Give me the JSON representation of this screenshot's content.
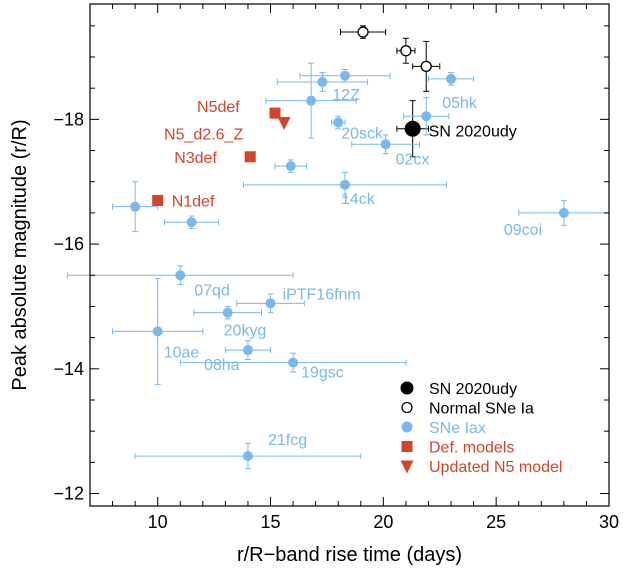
{
  "chart_data": {
    "type": "scatter",
    "xlabel": "r/R−band rise time (days)",
    "ylabel": "Peak absolute magnitude (r/R)",
    "xlim": [
      7,
      30
    ],
    "ylim": [
      -11.8,
      -19.85
    ],
    "y_inverted": true,
    "x_ticks": [
      10,
      15,
      20,
      25,
      30
    ],
    "y_ticks": [
      -12,
      -14,
      -16,
      -18
    ],
    "y_tick_labels": [
      "−12",
      "−14",
      "−16",
      "−18"
    ],
    "legend_position": "bottom-right",
    "colors": {
      "iax": "#79b8ec",
      "def": "#d6432a",
      "black": "#000000"
    },
    "series": [
      {
        "name": "SN 2020udy",
        "marker": "filled-circle",
        "color": "#000000",
        "points": [
          {
            "label": "SN 2020udy",
            "x": 21.3,
            "y": -17.85,
            "xerr": 0.7,
            "yerr": 0.45
          }
        ]
      },
      {
        "name": "Normal SNe Ia",
        "marker": "open-circle",
        "color": "#000000",
        "points": [
          {
            "label": "",
            "x": 19.1,
            "y": -19.4,
            "xerr": 1.0,
            "yerr": 0.1
          },
          {
            "label": "",
            "x": 21.0,
            "y": -19.1,
            "xerr": 0.4,
            "yerr": 0.2
          },
          {
            "label": "",
            "x": 21.9,
            "y": -18.85,
            "xerr": 0.6,
            "yerr": 0.4
          }
        ]
      },
      {
        "name": "SNe Iax",
        "marker": "filled-circle",
        "color": "#79b8ec",
        "points": [
          {
            "label": "12Z",
            "x": 17.3,
            "y": -18.6,
            "xerr": 2.0,
            "yerr": 0.15
          },
          {
            "label": "",
            "x": 18.3,
            "y": -18.7,
            "xerr": 2.0,
            "yerr": 0.1
          },
          {
            "label": "",
            "x": 16.8,
            "y": -18.3,
            "xerr": 2.0,
            "yerr": 0.6
          },
          {
            "label": "20sck",
            "x": 18.0,
            "y": -17.95,
            "xerr": 0.3,
            "yerr": 0.1
          },
          {
            "label": "05hk",
            "x": 21.9,
            "y": -18.05,
            "xerr": 1.0,
            "yerr": 0.3
          },
          {
            "label": "",
            "x": 23.0,
            "y": -18.65,
            "xerr": 1.0,
            "yerr": 0.1
          },
          {
            "label": "02cx",
            "x": 20.1,
            "y": -17.6,
            "xerr": 1.5,
            "yerr": 0.15
          },
          {
            "label": "",
            "x": 15.9,
            "y": -17.25,
            "xerr": 0.7,
            "yerr": 0.1
          },
          {
            "label": "14ck",
            "x": 18.3,
            "y": -16.95,
            "xerr": 4.5,
            "yerr": 0.2
          },
          {
            "label": "",
            "x": 9.0,
            "y": -16.6,
            "xerr": 1.0,
            "yerr": 0.4
          },
          {
            "label": "",
            "x": 11.5,
            "y": -16.35,
            "xerr": 1.2,
            "yerr": 0.1
          },
          {
            "label": "09coi",
            "x": 28.0,
            "y": -16.5,
            "xerr": 2.0,
            "yerr": 0.2
          },
          {
            "label": "07qd",
            "x": 11.0,
            "y": -15.5,
            "xerr": 5.0,
            "yerr": 0.15
          },
          {
            "label": "iPTF16fnm",
            "x": 15.0,
            "y": -15.05,
            "xerr": 1.5,
            "yerr": 0.15
          },
          {
            "label": "20kyg",
            "x": 13.1,
            "y": -14.9,
            "xerr": 1.5,
            "yerr": 0.1
          },
          {
            "label": "10ae",
            "x": 10.0,
            "y": -14.6,
            "xerr": 2.0,
            "yerr": 0.85
          },
          {
            "label": "08ha",
            "x": 14.0,
            "y": -14.3,
            "xerr": 1.0,
            "yerr": 0.15
          },
          {
            "label": "19gsc",
            "x": 16.0,
            "y": -14.1,
            "xerr": 5.0,
            "yerr": 0.15
          },
          {
            "label": "21fcg",
            "x": 14.0,
            "y": -12.6,
            "xerr": 5.0,
            "yerr": 0.2
          }
        ]
      },
      {
        "name": "Def. models",
        "marker": "filled-square",
        "color": "#d6432a",
        "points": [
          {
            "label": "N5def",
            "x": 15.2,
            "y": -18.1
          },
          {
            "label": "N3def",
            "x": 14.1,
            "y": -17.4
          },
          {
            "label": "N1def",
            "x": 10.0,
            "y": -16.7
          }
        ]
      },
      {
        "name": "Updated N5 model",
        "marker": "filled-down-triangle",
        "color": "#d6432a",
        "points": [
          {
            "label": "N5_d2.6_Z",
            "x": 15.6,
            "y": -17.95
          }
        ]
      }
    ]
  }
}
